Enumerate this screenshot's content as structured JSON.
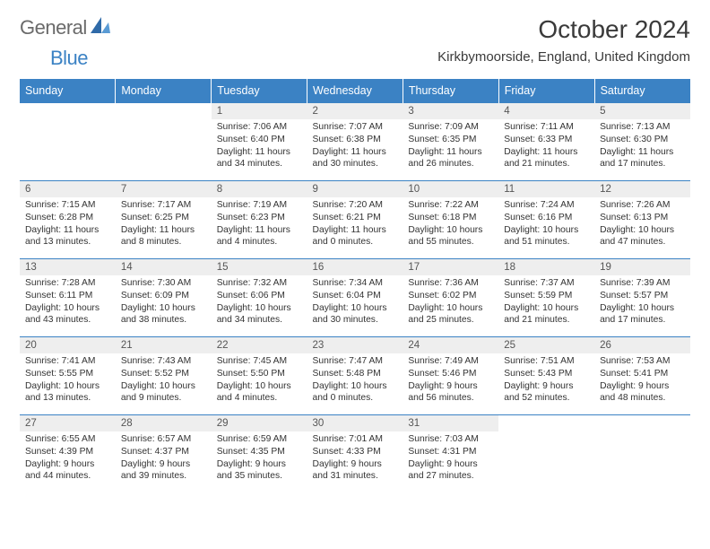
{
  "brand": {
    "text_gray": "General",
    "text_blue": "Blue",
    "tri_color": "#2f6aa8"
  },
  "header": {
    "title": "October 2024",
    "subtitle": "Kirkbymoorside, England, United Kingdom"
  },
  "colors": {
    "header_bg": "#3b82c4",
    "header_fg": "#ffffff",
    "daynum_bg": "#eeeeee",
    "row_border": "#3b82c4",
    "text": "#333333",
    "logo_gray": "#6a6a6a"
  },
  "weekdays": [
    "Sunday",
    "Monday",
    "Tuesday",
    "Wednesday",
    "Thursday",
    "Friday",
    "Saturday"
  ],
  "weeks": [
    [
      null,
      null,
      {
        "n": "1",
        "sr": "Sunrise: 7:06 AM",
        "ss": "Sunset: 6:40 PM",
        "dl": "Daylight: 11 hours and 34 minutes."
      },
      {
        "n": "2",
        "sr": "Sunrise: 7:07 AM",
        "ss": "Sunset: 6:38 PM",
        "dl": "Daylight: 11 hours and 30 minutes."
      },
      {
        "n": "3",
        "sr": "Sunrise: 7:09 AM",
        "ss": "Sunset: 6:35 PM",
        "dl": "Daylight: 11 hours and 26 minutes."
      },
      {
        "n": "4",
        "sr": "Sunrise: 7:11 AM",
        "ss": "Sunset: 6:33 PM",
        "dl": "Daylight: 11 hours and 21 minutes."
      },
      {
        "n": "5",
        "sr": "Sunrise: 7:13 AM",
        "ss": "Sunset: 6:30 PM",
        "dl": "Daylight: 11 hours and 17 minutes."
      }
    ],
    [
      {
        "n": "6",
        "sr": "Sunrise: 7:15 AM",
        "ss": "Sunset: 6:28 PM",
        "dl": "Daylight: 11 hours and 13 minutes."
      },
      {
        "n": "7",
        "sr": "Sunrise: 7:17 AM",
        "ss": "Sunset: 6:25 PM",
        "dl": "Daylight: 11 hours and 8 minutes."
      },
      {
        "n": "8",
        "sr": "Sunrise: 7:19 AM",
        "ss": "Sunset: 6:23 PM",
        "dl": "Daylight: 11 hours and 4 minutes."
      },
      {
        "n": "9",
        "sr": "Sunrise: 7:20 AM",
        "ss": "Sunset: 6:21 PM",
        "dl": "Daylight: 11 hours and 0 minutes."
      },
      {
        "n": "10",
        "sr": "Sunrise: 7:22 AM",
        "ss": "Sunset: 6:18 PM",
        "dl": "Daylight: 10 hours and 55 minutes."
      },
      {
        "n": "11",
        "sr": "Sunrise: 7:24 AM",
        "ss": "Sunset: 6:16 PM",
        "dl": "Daylight: 10 hours and 51 minutes."
      },
      {
        "n": "12",
        "sr": "Sunrise: 7:26 AM",
        "ss": "Sunset: 6:13 PM",
        "dl": "Daylight: 10 hours and 47 minutes."
      }
    ],
    [
      {
        "n": "13",
        "sr": "Sunrise: 7:28 AM",
        "ss": "Sunset: 6:11 PM",
        "dl": "Daylight: 10 hours and 43 minutes."
      },
      {
        "n": "14",
        "sr": "Sunrise: 7:30 AM",
        "ss": "Sunset: 6:09 PM",
        "dl": "Daylight: 10 hours and 38 minutes."
      },
      {
        "n": "15",
        "sr": "Sunrise: 7:32 AM",
        "ss": "Sunset: 6:06 PM",
        "dl": "Daylight: 10 hours and 34 minutes."
      },
      {
        "n": "16",
        "sr": "Sunrise: 7:34 AM",
        "ss": "Sunset: 6:04 PM",
        "dl": "Daylight: 10 hours and 30 minutes."
      },
      {
        "n": "17",
        "sr": "Sunrise: 7:36 AM",
        "ss": "Sunset: 6:02 PM",
        "dl": "Daylight: 10 hours and 25 minutes."
      },
      {
        "n": "18",
        "sr": "Sunrise: 7:37 AM",
        "ss": "Sunset: 5:59 PM",
        "dl": "Daylight: 10 hours and 21 minutes."
      },
      {
        "n": "19",
        "sr": "Sunrise: 7:39 AM",
        "ss": "Sunset: 5:57 PM",
        "dl": "Daylight: 10 hours and 17 minutes."
      }
    ],
    [
      {
        "n": "20",
        "sr": "Sunrise: 7:41 AM",
        "ss": "Sunset: 5:55 PM",
        "dl": "Daylight: 10 hours and 13 minutes."
      },
      {
        "n": "21",
        "sr": "Sunrise: 7:43 AM",
        "ss": "Sunset: 5:52 PM",
        "dl": "Daylight: 10 hours and 9 minutes."
      },
      {
        "n": "22",
        "sr": "Sunrise: 7:45 AM",
        "ss": "Sunset: 5:50 PM",
        "dl": "Daylight: 10 hours and 4 minutes."
      },
      {
        "n": "23",
        "sr": "Sunrise: 7:47 AM",
        "ss": "Sunset: 5:48 PM",
        "dl": "Daylight: 10 hours and 0 minutes."
      },
      {
        "n": "24",
        "sr": "Sunrise: 7:49 AM",
        "ss": "Sunset: 5:46 PM",
        "dl": "Daylight: 9 hours and 56 minutes."
      },
      {
        "n": "25",
        "sr": "Sunrise: 7:51 AM",
        "ss": "Sunset: 5:43 PM",
        "dl": "Daylight: 9 hours and 52 minutes."
      },
      {
        "n": "26",
        "sr": "Sunrise: 7:53 AM",
        "ss": "Sunset: 5:41 PM",
        "dl": "Daylight: 9 hours and 48 minutes."
      }
    ],
    [
      {
        "n": "27",
        "sr": "Sunrise: 6:55 AM",
        "ss": "Sunset: 4:39 PM",
        "dl": "Daylight: 9 hours and 44 minutes."
      },
      {
        "n": "28",
        "sr": "Sunrise: 6:57 AM",
        "ss": "Sunset: 4:37 PM",
        "dl": "Daylight: 9 hours and 39 minutes."
      },
      {
        "n": "29",
        "sr": "Sunrise: 6:59 AM",
        "ss": "Sunset: 4:35 PM",
        "dl": "Daylight: 9 hours and 35 minutes."
      },
      {
        "n": "30",
        "sr": "Sunrise: 7:01 AM",
        "ss": "Sunset: 4:33 PM",
        "dl": "Daylight: 9 hours and 31 minutes."
      },
      {
        "n": "31",
        "sr": "Sunrise: 7:03 AM",
        "ss": "Sunset: 4:31 PM",
        "dl": "Daylight: 9 hours and 27 minutes."
      },
      null,
      null
    ]
  ]
}
